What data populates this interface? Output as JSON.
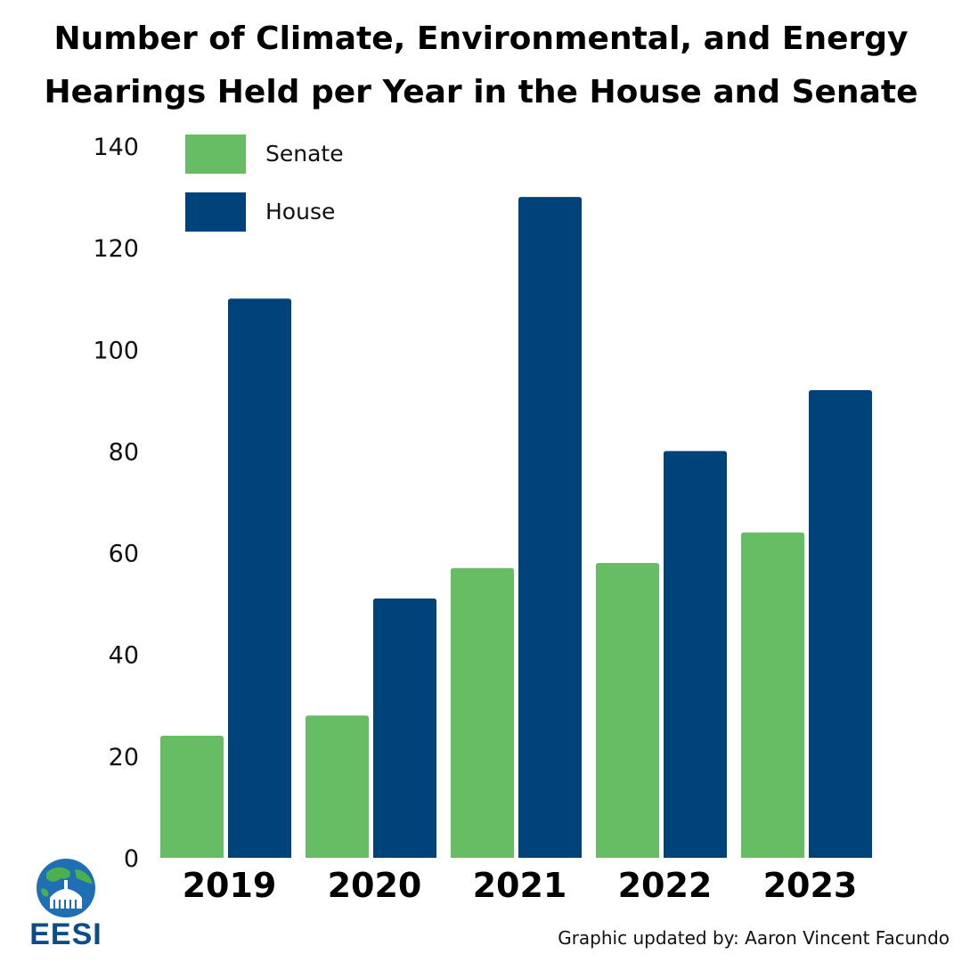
{
  "title_line1": "Number of Climate, Environmental, and Energy",
  "title_line2": "Hearings Held per Year in the House and Senate",
  "credit": "Graphic updated by: Aaron Vincent Facundo",
  "logo": {
    "text": "EESI",
    "icon": "globe-capitol-icon"
  },
  "colors": {
    "senate": "#66bd63",
    "house": "#00427a",
    "logo_blue": "#0b4d8c"
  },
  "chart_data": {
    "type": "bar",
    "categories": [
      "2019",
      "2020",
      "2021",
      "2022",
      "2023"
    ],
    "series": [
      {
        "name": "Senate",
        "values": [
          24,
          28,
          57,
          58,
          64
        ]
      },
      {
        "name": "House",
        "values": [
          110,
          51,
          130,
          80,
          92
        ]
      }
    ],
    "title": "Number of Climate, Environmental, and Energy Hearings Held per Year in the House and Senate",
    "xlabel": "",
    "ylabel": "",
    "ylim": [
      0,
      140
    ],
    "yticks": [
      0,
      20,
      40,
      60,
      80,
      100,
      120,
      140
    ],
    "legend_position": "top-left",
    "grid": false
  }
}
